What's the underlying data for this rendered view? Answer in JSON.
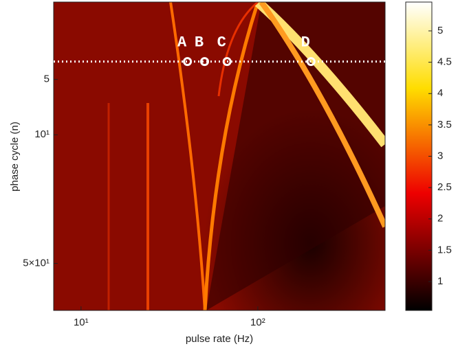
{
  "chart_data": {
    "type": "heatmap",
    "x_label": "pulse rate (Hz)",
    "y_label": "phase cycle (n)",
    "xlim": [
      7,
      525
    ],
    "xticks": [
      {
        "value": 10,
        "label": "10¹"
      },
      {
        "value": 100,
        "label": "10²"
      }
    ],
    "xscale": "log",
    "ylim": [
      90,
      1.9
    ],
    "yticks": [
      5,
      {
        "value": 10,
        "label": "10¹"
      },
      {
        "value": 50,
        "label": "5×10¹"
      }
    ],
    "yscale": "log",
    "colormap": "hot",
    "clim": [
      0.54,
      5.46
    ],
    "cticks": [
      1,
      1.5,
      2,
      2.5,
      3,
      3.5,
      4,
      4.5,
      5
    ],
    "annotations": {
      "labels": [
        "A",
        "B",
        "C",
        "D"
      ],
      "x": [
        40,
        50,
        67,
        200
      ],
      "y": 4
    }
  }
}
